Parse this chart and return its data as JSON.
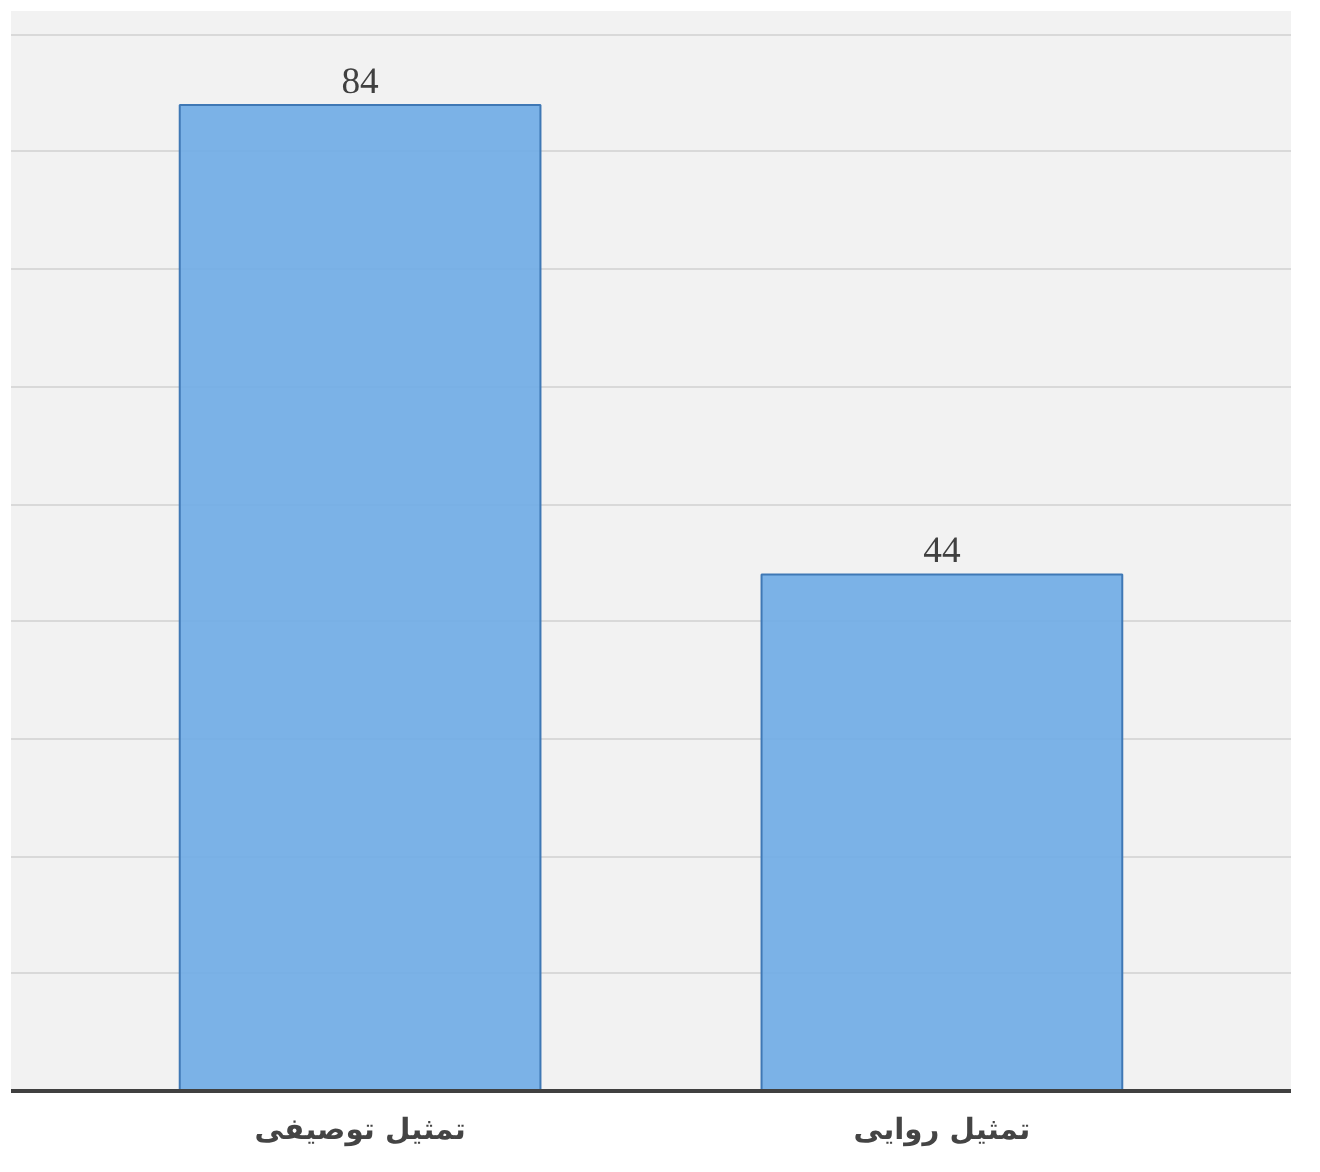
{
  "chart_data": {
    "type": "bar",
    "categories": [
      "تمثیل توصیفی",
      "تمثیل روایی"
    ],
    "values": [
      84,
      44
    ],
    "color": "#74aee6",
    "data_labels": true,
    "ylim": [
      0,
      92
    ],
    "yticks": [
      {
        "value": 0,
        "label": null
      },
      {
        "value": 10,
        "label": null
      },
      {
        "value": 20,
        "label": null
      },
      {
        "value": 30,
        "label": null
      },
      {
        "value": 40,
        "label": null
      },
      {
        "value": 50,
        "label": null
      },
      {
        "value": 60,
        "label": null
      },
      {
        "value": 70,
        "label": null
      },
      {
        "value": 80,
        "label": null
      },
      {
        "value": 90,
        "label": null
      }
    ],
    "grid": "y",
    "tick_labels": "x"
  }
}
